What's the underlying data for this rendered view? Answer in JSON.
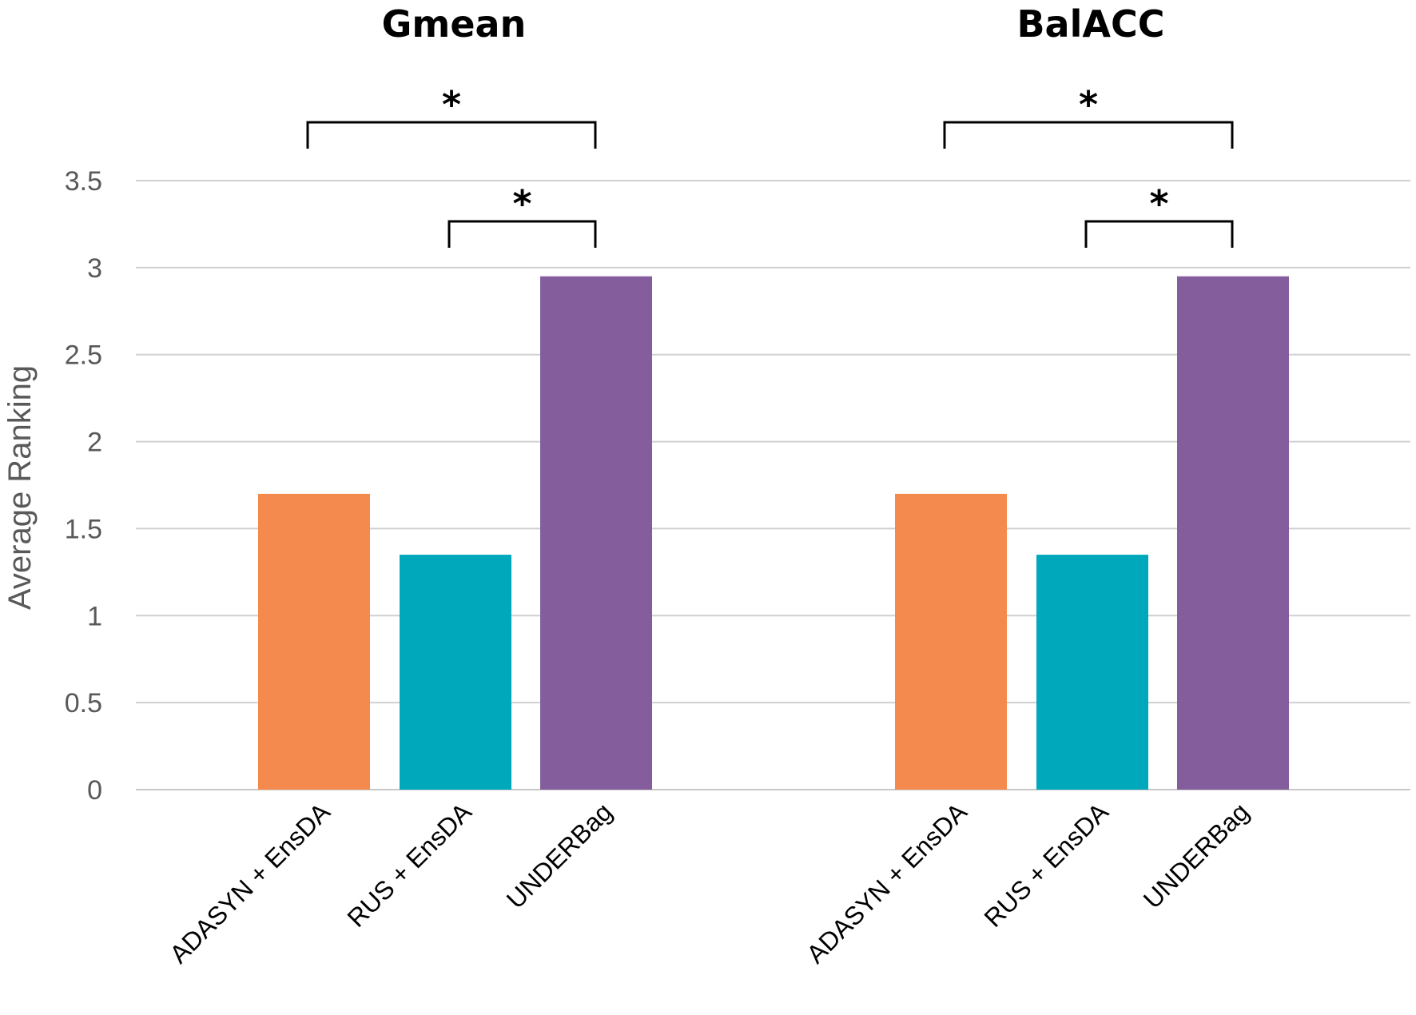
{
  "chart_data": {
    "type": "bar",
    "ylabel": "Average Ranking",
    "ylim": [
      0,
      3.5
    ],
    "yticks": [
      "0",
      "0.5",
      "1",
      "1.5",
      "2",
      "2.5",
      "3",
      "3.5"
    ],
    "grid": true,
    "colors": [
      "#F58A4E",
      "#00A8BB",
      "#845D9C"
    ],
    "panels": [
      {
        "title": "Gmean",
        "categories": [
          "ADASYN + EnsDA",
          "RUS + EnsDA",
          "UNDERBag"
        ],
        "values": [
          1.7,
          1.35,
          2.95
        ],
        "significance": [
          {
            "from": 0,
            "to": 2,
            "label": "*"
          },
          {
            "from": 1,
            "to": 2,
            "label": "*"
          }
        ]
      },
      {
        "title": "BalACC",
        "categories": [
          "ADASYN + EnsDA",
          "RUS + EnsDA",
          "UNDERBag"
        ],
        "values": [
          1.7,
          1.35,
          2.95
        ],
        "significance": [
          {
            "from": 0,
            "to": 2,
            "label": "*"
          },
          {
            "from": 1,
            "to": 2,
            "label": "*"
          }
        ]
      }
    ]
  }
}
